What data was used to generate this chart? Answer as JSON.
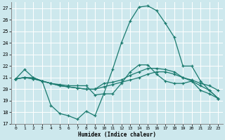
{
  "title": "",
  "xlabel": "Humidex (Indice chaleur)",
  "ylabel": "",
  "xlim": [
    -0.5,
    23.5
  ],
  "ylim": [
    17,
    27.5
  ],
  "yticks": [
    17,
    18,
    19,
    20,
    21,
    22,
    23,
    24,
    25,
    26,
    27
  ],
  "xticks": [
    0,
    1,
    2,
    3,
    4,
    5,
    6,
    7,
    8,
    9,
    10,
    11,
    12,
    13,
    14,
    15,
    16,
    17,
    18,
    19,
    20,
    21,
    22,
    23
  ],
  "bg_color": "#cde8ed",
  "grid_color": "#ffffff",
  "line_color": "#1a7a6e",
  "lines": [
    {
      "x": [
        0,
        1,
        2,
        3,
        4,
        5,
        6,
        7,
        8,
        9,
        10,
        11,
        12,
        13,
        14,
        15,
        16,
        17,
        18,
        19,
        20,
        21,
        22,
        23
      ],
      "y": [
        20.9,
        21.7,
        21.0,
        20.7,
        18.6,
        17.9,
        17.7,
        17.4,
        18.1,
        17.7,
        19.6,
        19.6,
        20.5,
        21.5,
        22.1,
        22.1,
        21.3,
        20.7,
        20.5,
        20.5,
        20.7,
        19.9,
        19.6,
        19.2
      ]
    },
    {
      "x": [
        0,
        1,
        2,
        3,
        4,
        5,
        6,
        7,
        8,
        9,
        10,
        11,
        12,
        13,
        14,
        15,
        16,
        17,
        18,
        19,
        20,
        21,
        22,
        23
      ],
      "y": [
        20.9,
        21.0,
        20.9,
        20.7,
        20.5,
        20.4,
        20.3,
        20.3,
        20.3,
        19.5,
        19.6,
        21.7,
        24.0,
        25.9,
        27.1,
        27.2,
        26.8,
        25.7,
        24.5,
        22.0,
        22.0,
        20.7,
        19.9,
        19.2
      ]
    },
    {
      "x": [
        0,
        1,
        2,
        3,
        4,
        5,
        6,
        7,
        8,
        9,
        10,
        11,
        12,
        13,
        14,
        15,
        16,
        17,
        18,
        19,
        20,
        21,
        22,
        23
      ],
      "y": [
        20.9,
        21.0,
        20.9,
        20.7,
        20.5,
        20.3,
        20.2,
        20.1,
        20.0,
        20.0,
        20.2,
        20.4,
        20.6,
        20.8,
        21.0,
        21.3,
        21.5,
        21.5,
        21.3,
        21.0,
        20.7,
        20.3,
        19.9,
        19.2
      ]
    },
    {
      "x": [
        0,
        1,
        2,
        3,
        4,
        5,
        6,
        7,
        8,
        9,
        10,
        11,
        12,
        13,
        14,
        15,
        16,
        17,
        18,
        19,
        20,
        21,
        22,
        23
      ],
      "y": [
        20.9,
        21.0,
        21.0,
        20.7,
        20.5,
        20.3,
        20.2,
        20.1,
        20.0,
        20.0,
        20.5,
        20.6,
        20.8,
        21.2,
        21.5,
        21.8,
        21.8,
        21.7,
        21.5,
        21.0,
        20.8,
        20.5,
        20.3,
        19.9
      ]
    }
  ]
}
